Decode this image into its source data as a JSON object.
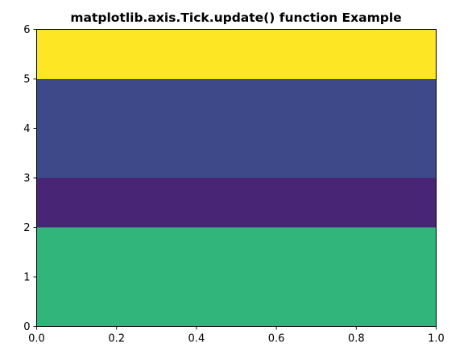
{
  "chart_data": {
    "type": "heatmap",
    "title": "matplotlib.axis.Tick.update() function Example",
    "xlabel": "",
    "ylabel": "",
    "xlim": [
      0,
      1
    ],
    "ylim": [
      0,
      6
    ],
    "x_ticks": [
      "0.0",
      "0.2",
      "0.4",
      "0.6",
      "0.8",
      "1.0"
    ],
    "y_ticks": [
      "0",
      "1",
      "2",
      "3",
      "4",
      "5",
      "6"
    ],
    "grid": false,
    "bands": [
      {
        "y0": 0,
        "y1": 2,
        "color": "#31b57b"
      },
      {
        "y0": 2,
        "y1": 3,
        "color": "#482575"
      },
      {
        "y0": 3,
        "y1": 5,
        "color": "#3e4989"
      },
      {
        "y0": 5,
        "y1": 6,
        "color": "#fde725"
      }
    ]
  }
}
